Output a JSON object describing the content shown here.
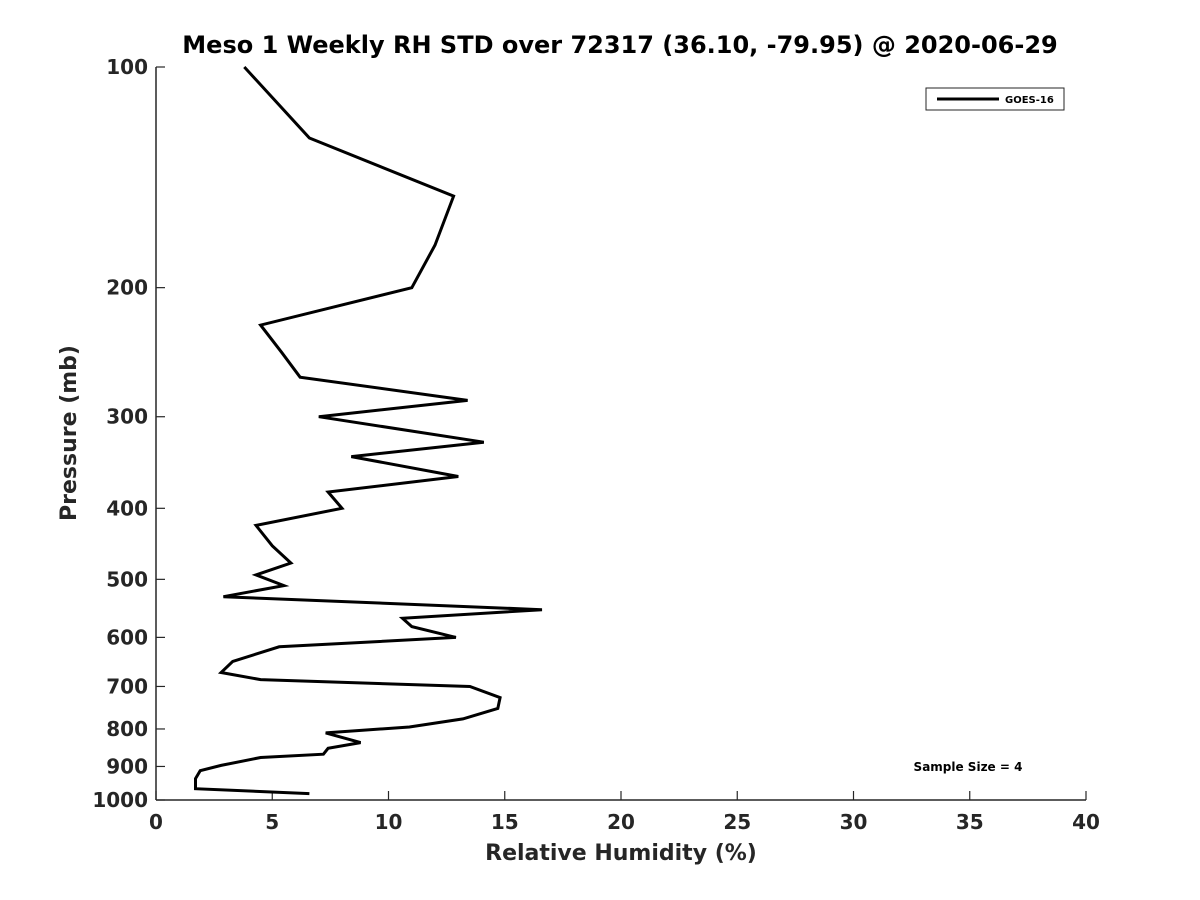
{
  "chart_data": {
    "type": "line",
    "title": "Meso 1 Weekly RH STD over 72317 (36.10, -79.95) @ 2020-06-29",
    "xlabel": "Relative Humidity (%)",
    "ylabel": "Pressure (mb)",
    "xlim": [
      0,
      40
    ],
    "ylim": [
      100,
      1000
    ],
    "y_scale": "log",
    "y_reversed": true,
    "x_ticks": [
      "0",
      "5",
      "10",
      "15",
      "20",
      "25",
      "30",
      "35",
      "40"
    ],
    "y_ticks": [
      "100",
      "200",
      "300",
      "400",
      "500",
      "600",
      "700",
      "800",
      "900",
      "1000"
    ],
    "grid": false,
    "legend_position": "top-right",
    "annotation": "Sample Size = 4",
    "series": [
      {
        "name": "GOES-16",
        "color": "#000000",
        "x": [
          3.8,
          6.6,
          12.8,
          12.0,
          11.0,
          4.5,
          5.4,
          6.2,
          13.4,
          7.0,
          14.1,
          8.4,
          13.0,
          7.4,
          8.0,
          4.3,
          5.0,
          5.8,
          4.3,
          5.5,
          2.9,
          16.6,
          10.6,
          11.0,
          12.9,
          5.3,
          3.3,
          2.8,
          4.5,
          13.5,
          14.8,
          14.7,
          13.2,
          10.9,
          7.3,
          8.8,
          7.4,
          7.2,
          4.5,
          2.8,
          1.9,
          1.7,
          1.7,
          6.6
        ],
        "y": [
          100,
          125,
          150,
          175,
          200,
          225,
          245,
          265,
          285,
          300,
          325,
          340,
          362,
          380,
          400,
          422,
          450,
          475,
          493,
          510,
          528,
          550,
          565,
          580,
          600,
          618,
          647,
          670,
          685,
          700,
          725,
          750,
          775,
          795,
          810,
          835,
          850,
          866,
          875,
          897,
          912,
          935,
          965,
          980
        ]
      }
    ]
  }
}
